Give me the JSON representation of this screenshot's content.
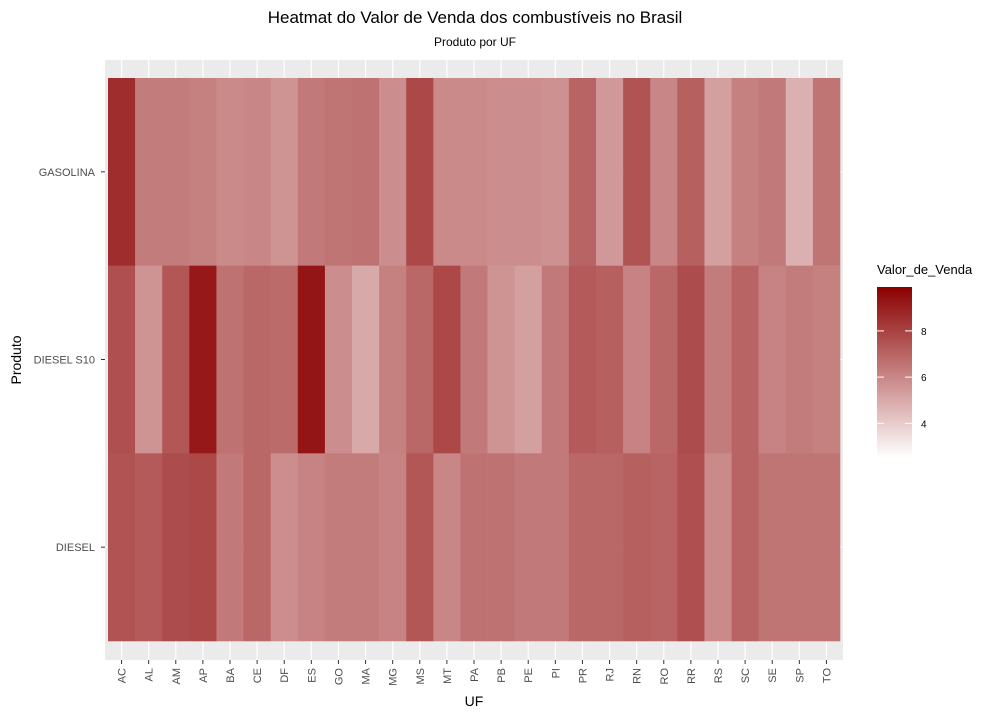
{
  "chart_data": {
    "type": "heatmap",
    "title": "Heatmat do Valor de Venda dos combustíveis no Brasil",
    "subtitle": "Produto por UF",
    "xlabel": "UF",
    "ylabel": "Produto",
    "x": [
      "AC",
      "AL",
      "AM",
      "AP",
      "BA",
      "CE",
      "DF",
      "ES",
      "GO",
      "MA",
      "MG",
      "MS",
      "MT",
      "PA",
      "PB",
      "PE",
      "PI",
      "PR",
      "RJ",
      "RN",
      "RO",
      "RR",
      "RS",
      "SC",
      "SE",
      "SP",
      "TO"
    ],
    "y": [
      "GASOLINA",
      "DIESEL S10",
      "DIESEL"
    ],
    "values": [
      [
        8.6,
        6.3,
        6.3,
        6.2,
        5.9,
        6.0,
        5.6,
        6.4,
        6.5,
        6.6,
        5.8,
        7.8,
        5.9,
        5.9,
        5.8,
        5.8,
        5.7,
        7.0,
        5.5,
        7.5,
        6.0,
        7.1,
        5.3,
        6.2,
        6.4,
        4.8,
        6.5
      ],
      [
        7.6,
        5.6,
        7.4,
        9.2,
        6.6,
        6.9,
        6.8,
        9.3,
        5.8,
        5.0,
        6.2,
        6.9,
        7.8,
        6.4,
        5.6,
        5.3,
        6.4,
        7.3,
        7.1,
        6.1,
        6.9,
        7.7,
        6.3,
        7.0,
        6.1,
        6.3,
        6.2
      ],
      [
        7.5,
        7.3,
        7.7,
        7.8,
        6.4,
        6.9,
        5.8,
        6.1,
        6.3,
        6.3,
        6.1,
        7.4,
        6.0,
        6.6,
        6.6,
        6.4,
        6.4,
        6.9,
        6.9,
        7.1,
        7.0,
        7.6,
        5.9,
        7.0,
        6.5,
        6.5,
        6.5
      ]
    ],
    "legend": {
      "title": "Valor_de_Venda",
      "ticks": [
        4,
        6,
        8
      ],
      "range": [
        2.5,
        9.9
      ],
      "position": "right"
    },
    "colors": {
      "low": "#ffffff",
      "high": "#8b0000",
      "panel_bg": "#ebebeb",
      "grid": "#ffffff"
    },
    "grid": true
  }
}
